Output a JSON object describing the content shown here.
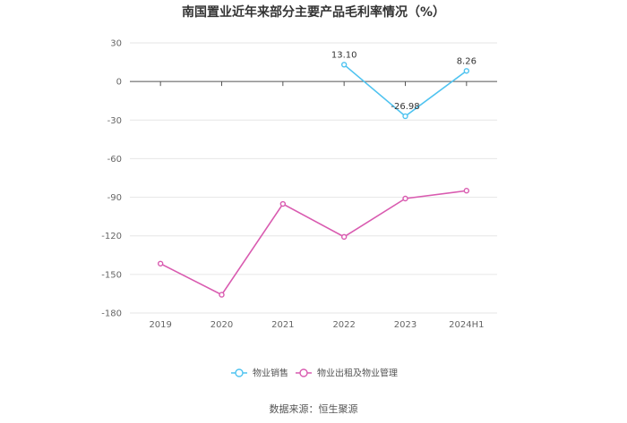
{
  "chart_data": {
    "type": "line",
    "title": "南国置业近年来部分主要产品毛利率情况（%）",
    "xlabel": "",
    "ylabel": "",
    "categories": [
      "2019",
      "2020",
      "2021",
      "2022",
      "2023",
      "2024H1"
    ],
    "ylim": [
      -180,
      30
    ],
    "yticks": [
      30,
      0,
      -30,
      -60,
      -90,
      -120,
      -150,
      -180
    ],
    "grid": true,
    "legend_position": "bottom",
    "series": [
      {
        "name": "物业销售",
        "color": "#4fc3f0",
        "values": [
          null,
          null,
          null,
          13.1,
          -26.98,
          8.26
        ],
        "labels": [
          "",
          "",
          "",
          "13.10",
          "-26.98",
          "8.26"
        ]
      },
      {
        "name": "物业出租及物业管理",
        "color": "#d95bb0",
        "values": [
          -141.6,
          -165.8,
          -95.2,
          -120.8,
          -91.0,
          -84.9
        ],
        "labels": [
          "",
          "",
          "",
          "",
          "",
          ""
        ]
      }
    ]
  },
  "source_text": "数据来源：恒生聚源"
}
